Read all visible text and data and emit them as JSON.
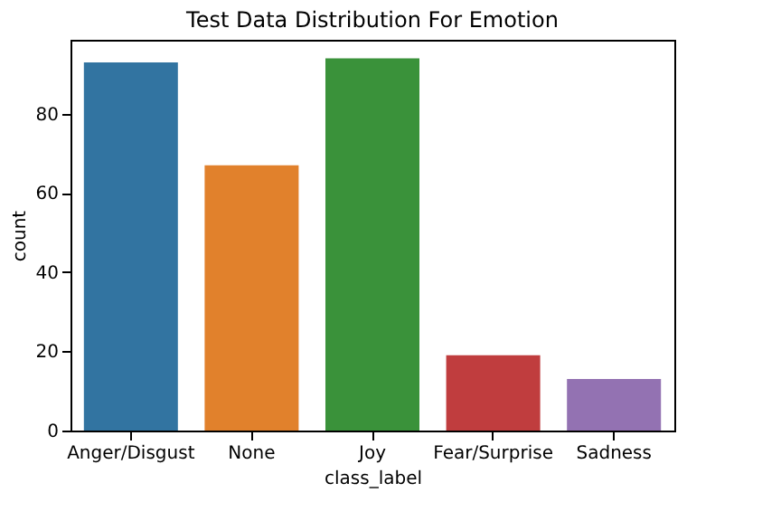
{
  "chart_data": {
    "type": "bar",
    "title": "Test Data Distribution For Emotion",
    "xlabel": "class_label",
    "ylabel": "count",
    "categories": [
      "Anger/Disgust",
      "None",
      "Joy",
      "Fear/Surprise",
      "Sadness"
    ],
    "values": [
      93,
      67,
      94,
      19,
      13
    ],
    "colors": [
      "#3274a1",
      "#e1812c",
      "#3a923a",
      "#c03d3e",
      "#9372b2"
    ],
    "ylim": [
      0,
      98.7
    ],
    "yticks": [
      0,
      20,
      40,
      60,
      80
    ],
    "grid": false
  }
}
